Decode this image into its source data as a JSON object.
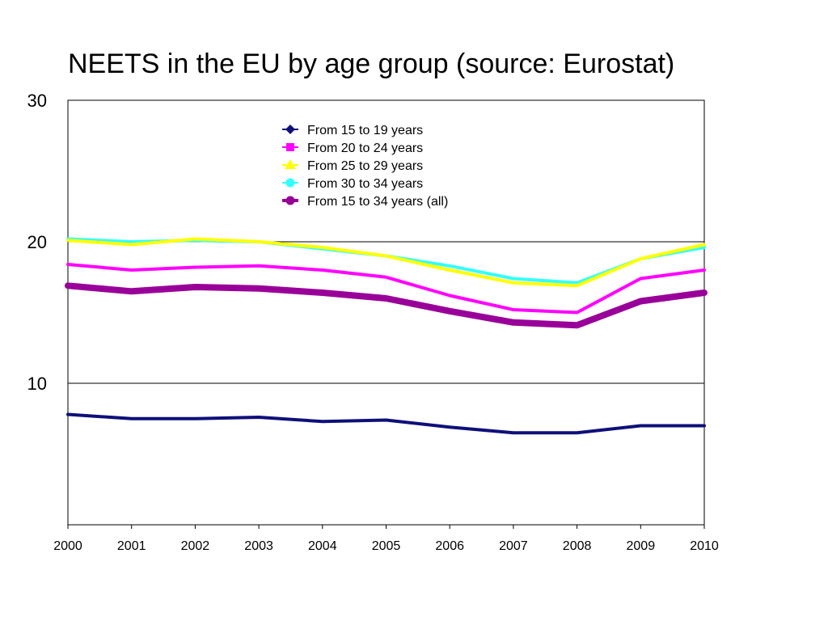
{
  "chart_data": {
    "type": "line",
    "title": "NEETS in the EU by age group (source: Eurostat)",
    "xlabel": "",
    "ylabel": "",
    "x": [
      "2000",
      "2001",
      "2002",
      "2003",
      "2004",
      "2005",
      "2006",
      "2007",
      "2008",
      "2009",
      "2010"
    ],
    "yticks": [
      "10",
      "20",
      "30"
    ],
    "ylim": [
      0,
      30
    ],
    "grid": "horizontal major lines",
    "legend_position": "top-center",
    "series": [
      {
        "name": "From 15 to 19 years",
        "color": "#0f0f7a",
        "marker": "diamond",
        "values": [
          7.8,
          7.5,
          7.5,
          7.6,
          7.3,
          7.4,
          6.9,
          6.5,
          6.5,
          7.0,
          7.0
        ]
      },
      {
        "name": "From 20 to 24 years",
        "color": "#ff00ff",
        "marker": "square",
        "values": [
          18.4,
          18.0,
          18.2,
          18.3,
          18.0,
          17.5,
          16.2,
          15.2,
          15.0,
          17.4,
          18.0
        ]
      },
      {
        "name": "From 25 to 29 years",
        "color": "#ffff00",
        "marker": "triangle",
        "values": [
          20.1,
          19.8,
          20.2,
          20.0,
          19.6,
          19.0,
          18.0,
          17.1,
          16.9,
          18.8,
          19.8
        ]
      },
      {
        "name": "From 30 to 34 years",
        "color": "#33ffff",
        "marker": "circle",
        "values": [
          20.2,
          20.0,
          20.1,
          20.0,
          19.5,
          19.0,
          18.3,
          17.4,
          17.1,
          18.8,
          19.6
        ]
      },
      {
        "name": "From 15 to 34 years (all)",
        "color": "#990099",
        "marker": "circle",
        "values": [
          16.9,
          16.5,
          16.8,
          16.7,
          16.4,
          16.0,
          15.1,
          14.3,
          14.1,
          15.8,
          16.4
        ]
      }
    ]
  }
}
